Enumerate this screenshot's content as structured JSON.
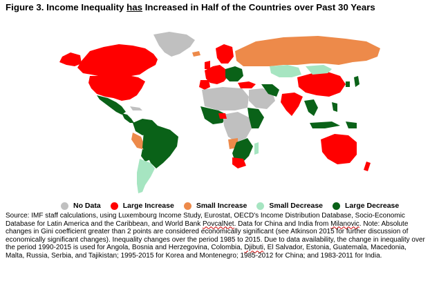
{
  "title": {
    "before": "Figure 3. Income Inequality ",
    "underlined": "has",
    "after": " Increased in Half of the Countries over Past 30 Years"
  },
  "colors": {
    "no_data": "#c0c0c0",
    "large_increase": "#ff0000",
    "small_increase": "#ed8a4a",
    "small_decrease": "#a6e5c1",
    "large_decrease": "#0a6218"
  },
  "legend": [
    {
      "label": "No Data",
      "color": "#c0c0c0"
    },
    {
      "label": "Large Increase",
      "color": "#ff0000"
    },
    {
      "label": "Small Increase",
      "color": "#ed8a4a"
    },
    {
      "label": "Small Decrease",
      "color": "#a6e5c1"
    },
    {
      "label": "Large Decrease",
      "color": "#0a6218"
    }
  ],
  "source": {
    "p1": "Source: IMF staff calculations, using Luxembourg Income Study, Eurostat, OECD's Income Distribution Database, Socio-Economic Database for Latin America and the Caribbean, and World Bank ",
    "p2": "PovcalNet",
    "p3": ". Data for China and India from ",
    "p4": "Milanovic",
    "p5": ". Note: Absolute changes in Gini coefficient greater than 2 points are considered economically significant (see Atkinson 2015 for further discussion of economically significant changes). Inequality changes over the period 1985 to 2015. Due to data availability, the change in inequality over the period 1990-2015 is used for Angola, Bosnia and Herzegovina, Colombia, ",
    "p6": "Djibuti",
    "p7": ", El Salvador, Estonia, Guatemala, Macedonia, Malta, Russia, Serbia, and Tajikistan; 1995-2015 for Korea and Montenegro; 1985-2012 for China; and 1983-2011 for India."
  }
}
